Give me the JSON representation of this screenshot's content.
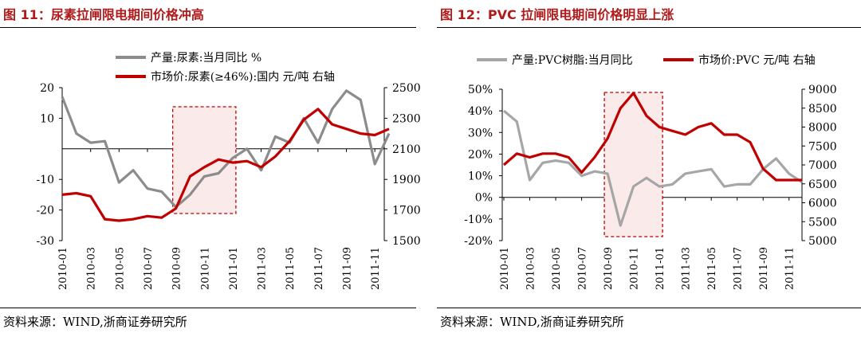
{
  "panels": [
    {
      "title": "图  11：尿素拉闸限电期间价格冲高",
      "source": "资料来源：WIND,浙商证券研究所",
      "chart_data": {
        "type": "line",
        "categories": [
          "2010-01",
          "2010-02",
          "2010-03",
          "2010-04",
          "2010-05",
          "2010-06",
          "2010-07",
          "2010-08",
          "2010-09",
          "2010-10",
          "2010-11",
          "2010-12",
          "2011-01",
          "2011-02",
          "2011-03",
          "2011-04",
          "2011-05",
          "2011-06",
          "2011-07",
          "2011-08",
          "2011-09",
          "2011-10",
          "2011-11",
          "2011-12"
        ],
        "x_tick_labels": [
          "2010-01",
          "2010-03",
          "2010-05",
          "2010-07",
          "2010-09",
          "2010-11",
          "2011-01",
          "2011-03",
          "2011-05",
          "2011-07",
          "2011-09",
          "2011-11"
        ],
        "y_left": {
          "min": -30,
          "max": 20,
          "ticks": [
            20,
            10,
            -10,
            -20,
            -30
          ],
          "tick_labels": [
            "20",
            "10",
            "-10",
            "-20",
            "-30"
          ]
        },
        "y_right": {
          "min": 1500,
          "max": 2500,
          "ticks": [
            2500,
            2300,
            2100,
            1900,
            1700,
            1500
          ],
          "tick_labels": [
            "2500",
            "2300",
            "2100",
            "1900",
            "1700",
            "1500"
          ]
        },
        "highlight": {
          "from": "2010-09",
          "to": "2011-01"
        },
        "series": [
          {
            "name": "产量:尿素:当月同比 %",
            "axis": "left",
            "color": "#8c8c8c",
            "values": [
              17,
              5,
              2,
              2.5,
              -11,
              -7,
              -13,
              -14,
              -19,
              -15,
              -9,
              -8,
              -3,
              0,
              -7,
              4,
              2,
              10,
              2,
              13,
              19,
              16,
              -5,
              5
            ]
          },
          {
            "name": "市场价:尿素(≥46%):国内 元/吨 右轴",
            "axis": "right",
            "color": "#c00000",
            "values": [
              1800,
              1810,
              1790,
              1640,
              1630,
              1640,
              1660,
              1650,
              1710,
              1920,
              1980,
              2030,
              2010,
              2020,
              1980,
              2050,
              2150,
              2290,
              2360,
              2260,
              2230,
              2200,
              2190,
              2230
            ]
          }
        ]
      }
    },
    {
      "title": "图  12：PVC 拉闸限电期间价格明显上涨",
      "source": "资料来源：WIND,浙商证券研究所",
      "chart_data": {
        "type": "line",
        "categories": [
          "2010-01",
          "2010-02",
          "2010-03",
          "2010-04",
          "2010-05",
          "2010-06",
          "2010-07",
          "2010-08",
          "2010-09",
          "2010-10",
          "2010-11",
          "2010-12",
          "2011-01",
          "2011-02",
          "2011-03",
          "2011-04",
          "2011-05",
          "2011-06",
          "2011-07",
          "2011-08",
          "2011-09",
          "2011-10",
          "2011-11",
          "2011-12"
        ],
        "x_tick_labels": [
          "2010-01",
          "2010-03",
          "2010-05",
          "2010-07",
          "2010-09",
          "2010-11",
          "2011-01",
          "2011-03",
          "2011-05",
          "2011-07",
          "2011-09",
          "2011-11"
        ],
        "y_left": {
          "min": -20,
          "max": 50,
          "ticks": [
            50,
            40,
            30,
            20,
            10,
            0,
            -10,
            -20
          ],
          "tick_labels": [
            "50%",
            "40%",
            "30%",
            "20%",
            "10%",
            "0%",
            "-10%",
            "-20%"
          ]
        },
        "y_right": {
          "min": 5000,
          "max": 9000,
          "ticks": [
            9000,
            8500,
            8000,
            7500,
            7000,
            6500,
            6000,
            5500,
            5000
          ],
          "tick_labels": [
            "9000",
            "8500",
            "8000",
            "7500",
            "7000",
            "6500",
            "6000",
            "5500",
            "5000"
          ]
        },
        "highlight": {
          "from": "2010-09",
          "to": "2011-01"
        },
        "series": [
          {
            "name": "产量:PVC树脂:当月同比",
            "axis": "left",
            "color": "#a6a6a6",
            "values": [
              40,
              35,
              8,
              16,
              17,
              16,
              10,
              12,
              11,
              -13,
              5,
              9,
              5,
              6,
              11,
              12,
              13,
              5,
              6,
              6,
              13,
              18,
              11,
              7
            ]
          },
          {
            "name": "市场价:PVC 元/吨 右轴",
            "axis": "right",
            "color": "#c00000",
            "values": [
              7000,
              7300,
              7200,
              7300,
              7300,
              7200,
              6800,
              7200,
              7700,
              8500,
              8900,
              8300,
              8000,
              7900,
              7800,
              8000,
              8100,
              7800,
              7800,
              7600,
              6900,
              6600,
              6600,
              6600
            ]
          }
        ]
      }
    }
  ]
}
